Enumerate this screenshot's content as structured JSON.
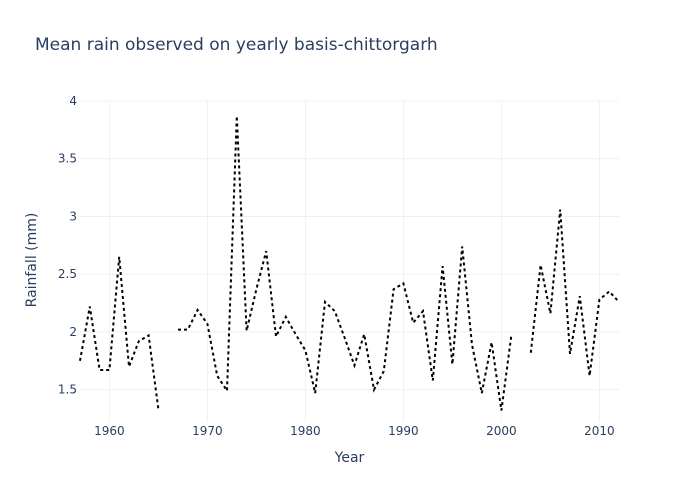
{
  "chart_data": {
    "type": "line",
    "title": "Mean rain observed on yearly basis-chittorgarh",
    "xlabel": "Year",
    "ylabel": "Rainfall (mm)",
    "xlim": [
      1957,
      2012
    ],
    "ylim": [
      1.22,
      4.0
    ],
    "x_ticks": [
      1960,
      1970,
      1980,
      1990,
      2000,
      2010
    ],
    "y_ticks": [
      1.5,
      2,
      2.5,
      3,
      3.5,
      4
    ],
    "grid": true,
    "line_style": "dotted",
    "line_color": "#000000",
    "series": [
      {
        "x": [
          1957,
          1958,
          1959,
          1960,
          1961,
          1962,
          1963,
          1964,
          1965,
          1966,
          1967,
          1968,
          1969,
          1970,
          1971,
          1972,
          1973,
          1974,
          1975,
          1976,
          1977,
          1978,
          1979,
          1980,
          1981,
          1982,
          1983,
          1984,
          1985,
          1986,
          1987,
          1988,
          1989,
          1990,
          1991,
          1992,
          1993,
          1994,
          1995,
          1996,
          1997,
          1998,
          1999,
          2000,
          2001,
          2002,
          2003,
          2004,
          2005,
          2006,
          2007,
          2008,
          2009,
          2010,
          2011,
          2012
        ],
        "y": [
          1.75,
          2.22,
          1.67,
          1.67,
          2.65,
          1.7,
          1.92,
          1.97,
          1.33,
          null,
          2.02,
          2.02,
          2.19,
          2.07,
          1.62,
          1.49,
          3.87,
          2.01,
          2.37,
          2.7,
          1.96,
          2.13,
          1.98,
          1.84,
          1.47,
          2.26,
          2.18,
          1.95,
          1.71,
          1.98,
          1.5,
          1.66,
          2.37,
          2.42,
          2.08,
          2.18,
          1.58,
          2.57,
          1.72,
          2.74,
          1.89,
          1.47,
          1.91,
          1.32,
          1.96,
          null,
          1.82,
          2.58,
          2.16,
          3.06,
          1.81,
          2.31,
          1.62,
          2.28,
          2.35,
          2.26
        ]
      }
    ]
  }
}
